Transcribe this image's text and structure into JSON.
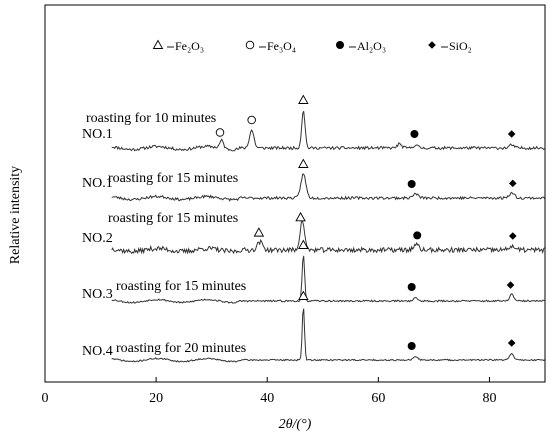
{
  "chart_data": {
    "type": "line",
    "xlabel": "2θ/(°)",
    "ylabel": "Relative intensity",
    "xlim": [
      0,
      90
    ],
    "x_ticks": [
      "0",
      "20",
      "40",
      "60",
      "80"
    ],
    "grid": false,
    "legend_position": "top",
    "legend": [
      {
        "symbol": "triangle",
        "label": "Fe₂O₃"
      },
      {
        "symbol": "circle-open",
        "label": "Fe₃O₄"
      },
      {
        "symbol": "circle-filled",
        "label": "Al₂O₃"
      },
      {
        "symbol": "diamond",
        "label": "SiO₂"
      }
    ],
    "series": [
      {
        "name": "NO.1",
        "annotation": "roasting for 10 minutes",
        "seed": 11,
        "noise": 1.4,
        "peaks": [
          {
            "x": 31.8,
            "h": 8,
            "w": 0.35
          },
          {
            "x": 37.2,
            "h": 18,
            "w": 0.4
          },
          {
            "x": 46.5,
            "h": 38,
            "w": 0.3
          },
          {
            "x": 63.8,
            "h": 4,
            "w": 0.4
          },
          {
            "x": 66.7,
            "h": 3,
            "w": 0.4
          },
          {
            "x": 84.0,
            "h": 3,
            "w": 0.4
          }
        ],
        "markers": [
          {
            "x": 31.5,
            "symbol": "circle-open"
          },
          {
            "x": 37.2,
            "symbol": "circle-open"
          },
          {
            "x": 46.5,
            "symbol": "triangle"
          },
          {
            "x": 66.5,
            "symbol": "circle-filled"
          },
          {
            "x": 84.0,
            "symbol": "diamond"
          }
        ]
      },
      {
        "name": "NO.1",
        "annotation": "roasting for 15 minutes",
        "seed": 23,
        "noise": 1.3,
        "peaks": [
          {
            "x": 46.5,
            "h": 24,
            "w": 0.45
          },
          {
            "x": 66.7,
            "h": 4,
            "w": 0.5
          },
          {
            "x": 84.0,
            "h": 5,
            "w": 0.5
          }
        ],
        "markers": [
          {
            "x": 46.5,
            "symbol": "triangle"
          },
          {
            "x": 66.0,
            "symbol": "circle-filled"
          },
          {
            "x": 84.2,
            "symbol": "diamond"
          }
        ]
      },
      {
        "name": "NO.2",
        "annotation": "roasting for 15 minutes",
        "seed": 37,
        "noise": 2.4,
        "peaks": [
          {
            "x": 38.7,
            "h": 8,
            "w": 0.5
          },
          {
            "x": 46.3,
            "h": 30,
            "w": 0.4
          },
          {
            "x": 66.8,
            "h": 5,
            "w": 0.5
          },
          {
            "x": 84.0,
            "h": 4,
            "w": 0.5
          }
        ],
        "markers": [
          {
            "x": 38.5,
            "symbol": "triangle"
          },
          {
            "x": 46.0,
            "symbol": "triangle"
          },
          {
            "x": 67.0,
            "symbol": "circle-filled"
          },
          {
            "x": 84.2,
            "symbol": "diamond"
          }
        ]
      },
      {
        "name": "NO.3",
        "annotation": "roasting for 15 minutes",
        "seed": 53,
        "noise": 0.8,
        "peaks": [
          {
            "x": 46.5,
            "h": 46,
            "w": 0.22
          },
          {
            "x": 66.7,
            "h": 3,
            "w": 0.4
          },
          {
            "x": 84.0,
            "h": 7,
            "w": 0.35
          }
        ],
        "markers": [
          {
            "x": 46.5,
            "symbol": "triangle"
          },
          {
            "x": 66.0,
            "symbol": "circle-filled"
          },
          {
            "x": 83.8,
            "symbol": "diamond"
          }
        ]
      },
      {
        "name": "NO.4",
        "annotation": "roasting for 20 minutes",
        "seed": 71,
        "noise": 0.7,
        "peaks": [
          {
            "x": 46.5,
            "h": 54,
            "w": 0.2
          },
          {
            "x": 66.7,
            "h": 3,
            "w": 0.4
          },
          {
            "x": 84.0,
            "h": 7,
            "w": 0.35
          }
        ],
        "markers": [
          {
            "x": 46.5,
            "symbol": "triangle"
          },
          {
            "x": 66.0,
            "symbol": "circle-filled"
          },
          {
            "x": 84.0,
            "symbol": "diamond"
          }
        ]
      }
    ]
  }
}
